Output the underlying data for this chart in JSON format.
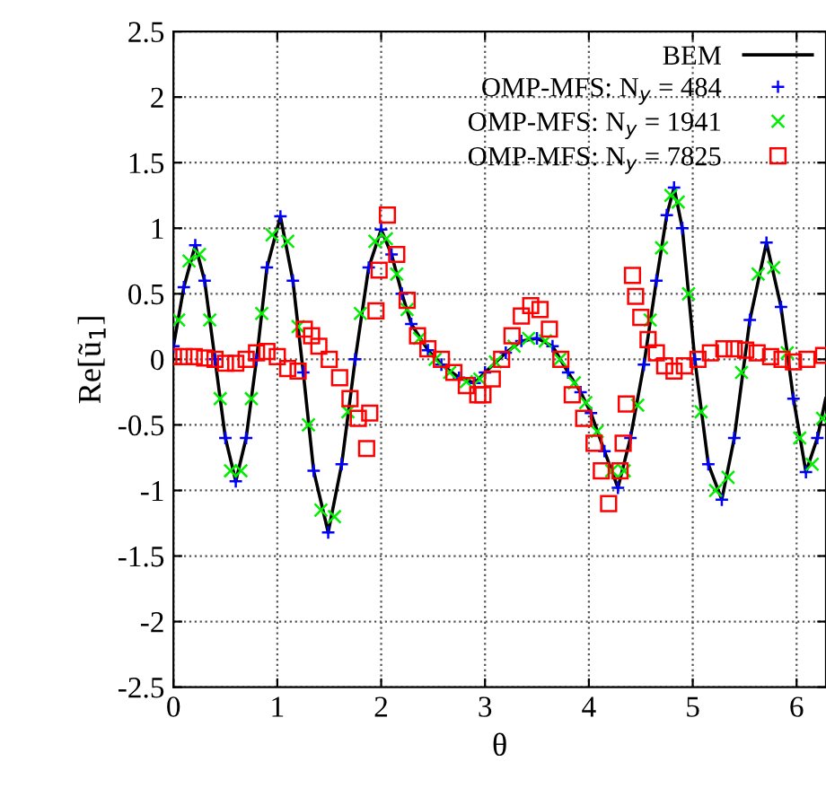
{
  "chart_data": {
    "type": "line",
    "xlabel": "θ",
    "ylabel": "Re[ũ$_{1}$]",
    "xlim": [
      0,
      6.2832
    ],
    "ylim": [
      -2.5,
      2.5
    ],
    "xticks": [
      0,
      1,
      2,
      3,
      4,
      5,
      6
    ],
    "yticks": [
      -2.5,
      -2,
      -1.5,
      -1,
      -0.5,
      0,
      0.5,
      1,
      1.5,
      2,
      2.5
    ],
    "grid": true,
    "legend": "top right",
    "series": [
      {
        "name": "BEM",
        "color": "#000000",
        "marker": "none",
        "line_style": "solid",
        "x": [
          0,
          0.1,
          0.21,
          0.3,
          0.4,
          0.5,
          0.6,
          0.7,
          0.8,
          0.9,
          1.03,
          1.15,
          1.25,
          1.35,
          1.49,
          1.62,
          1.75,
          1.88,
          2.0,
          2.1,
          2.2,
          2.29,
          2.45,
          2.58,
          2.75,
          2.9,
          3.0,
          3.2,
          3.35,
          3.5,
          3.65,
          3.8,
          3.92,
          4.02,
          4.15,
          4.28,
          4.4,
          4.53,
          4.65,
          4.75,
          4.82,
          4.9,
          5.02,
          5.15,
          5.28,
          5.4,
          5.55,
          5.71,
          5.85,
          5.97,
          6.09,
          6.2,
          6.28
        ],
        "values": [
          0.1,
          0.55,
          0.87,
          0.6,
          0.0,
          -0.6,
          -0.93,
          -0.6,
          0.0,
          0.7,
          1.09,
          0.6,
          -0.1,
          -0.85,
          -1.32,
          -0.8,
          0.0,
          0.7,
          0.99,
          0.8,
          0.5,
          0.27,
          0.07,
          -0.04,
          -0.14,
          -0.18,
          -0.1,
          0.05,
          0.14,
          0.16,
          0.1,
          -0.1,
          -0.25,
          -0.41,
          -0.7,
          -0.98,
          -0.6,
          -0.04,
          0.6,
          1.1,
          1.31,
          1.0,
          0.0,
          -0.8,
          -1.07,
          -0.6,
          0.3,
          0.89,
          0.4,
          -0.3,
          -0.86,
          -0.6,
          -0.3
        ]
      },
      {
        "name": "OMP-MFS: N$_{y}$ = 484",
        "type": "scatter",
        "color": "#0000ff",
        "marker": "plus",
        "x": [
          0,
          0.1,
          0.21,
          0.3,
          0.4,
          0.5,
          0.6,
          0.7,
          0.8,
          0.9,
          1.03,
          1.15,
          1.25,
          1.35,
          1.49,
          1.62,
          1.75,
          1.88,
          2.0,
          2.1,
          2.2,
          2.29,
          2.45,
          2.58,
          2.75,
          2.9,
          3.0,
          3.2,
          3.35,
          3.5,
          3.65,
          3.8,
          3.92,
          4.02,
          4.15,
          4.28,
          4.4,
          4.53,
          4.65,
          4.75,
          4.82,
          4.9,
          5.02,
          5.15,
          5.28,
          5.4,
          5.55,
          5.71,
          5.85,
          5.97,
          6.09,
          6.2
        ],
        "values": [
          0.1,
          0.55,
          0.87,
          0.6,
          0.0,
          -0.6,
          -0.93,
          -0.6,
          0.0,
          0.7,
          1.09,
          0.6,
          -0.1,
          -0.85,
          -1.32,
          -0.8,
          0.0,
          0.7,
          0.99,
          0.8,
          0.5,
          0.27,
          0.07,
          -0.04,
          -0.14,
          -0.18,
          -0.1,
          0.05,
          0.14,
          0.16,
          0.1,
          -0.1,
          -0.25,
          -0.41,
          -0.7,
          -0.98,
          -0.6,
          -0.04,
          0.6,
          1.1,
          1.31,
          1.0,
          0.0,
          -0.8,
          -1.07,
          -0.6,
          0.3,
          0.89,
          0.4,
          -0.3,
          -0.86,
          -0.6
        ]
      },
      {
        "name": "OMP-MFS: N$_{y}$ = 1941",
        "type": "scatter",
        "color": "#00ee00",
        "marker": "cross",
        "x": [
          0.05,
          0.15,
          0.25,
          0.35,
          0.45,
          0.55,
          0.65,
          0.75,
          0.85,
          0.95,
          1.1,
          1.2,
          1.3,
          1.42,
          1.55,
          1.68,
          1.8,
          1.94,
          2.05,
          2.15,
          2.25,
          2.37,
          2.52,
          2.66,
          2.82,
          2.95,
          3.1,
          3.28,
          3.42,
          3.58,
          3.72,
          3.86,
          3.97,
          4.08,
          4.22,
          4.34,
          4.47,
          4.59,
          4.7,
          4.79,
          4.86,
          4.96,
          5.08,
          5.22,
          5.34,
          5.47,
          5.63,
          5.78,
          5.91,
          6.03,
          6.15,
          6.25
        ],
        "values": [
          0.3,
          0.75,
          0.8,
          0.3,
          -0.3,
          -0.85,
          -0.85,
          -0.3,
          0.35,
          0.95,
          0.9,
          0.25,
          -0.5,
          -1.15,
          -1.2,
          -0.4,
          0.35,
          0.9,
          0.92,
          0.65,
          0.38,
          0.16,
          0.0,
          -0.1,
          -0.17,
          -0.15,
          -0.02,
          0.1,
          0.16,
          0.14,
          0.0,
          -0.18,
          -0.33,
          -0.55,
          -0.85,
          -0.85,
          -0.35,
          0.3,
          0.85,
          1.25,
          1.2,
          0.5,
          -0.4,
          -1.0,
          -0.9,
          -0.1,
          0.65,
          0.7,
          0.05,
          -0.6,
          -0.8,
          -0.45
        ]
      },
      {
        "name": "OMP-MFS: N$_{y}$ = 7825",
        "type": "scatter",
        "color": "#ff0000",
        "marker": "square",
        "x": [
          0,
          0.1,
          0.2,
          0.3,
          0.4,
          0.5,
          0.6,
          0.7,
          0.8,
          0.9,
          1.0,
          1.1,
          1.2,
          1.26,
          1.33,
          1.4,
          1.5,
          1.6,
          1.7,
          1.78,
          1.86,
          1.89,
          1.95,
          1.98,
          2.06,
          2.15,
          2.25,
          2.35,
          2.45,
          2.58,
          2.7,
          2.82,
          2.93,
          2.98,
          3.07,
          3.16,
          3.26,
          3.35,
          3.44,
          3.53,
          3.62,
          3.73,
          3.84,
          3.95,
          4.05,
          4.12,
          4.19,
          4.3,
          4.33,
          4.36,
          4.42,
          4.45,
          4.5,
          4.57,
          4.65,
          4.73,
          4.82,
          4.92,
          5.05,
          5.17,
          5.3,
          5.4,
          5.51,
          5.62,
          5.75,
          5.86,
          5.97,
          6.1,
          6.26
        ],
        "values": [
          0.02,
          0.02,
          0.02,
          0.01,
          0.0,
          -0.03,
          -0.03,
          0.0,
          0.05,
          0.06,
          0.02,
          -0.07,
          -0.09,
          0.23,
          0.18,
          0.1,
          0.0,
          -0.14,
          -0.3,
          -0.45,
          -0.68,
          -0.41,
          0.37,
          0.68,
          1.1,
          0.8,
          0.45,
          0.18,
          0.08,
          0.0,
          -0.1,
          -0.2,
          -0.27,
          -0.27,
          -0.15,
          0.0,
          0.18,
          0.33,
          0.41,
          0.38,
          0.23,
          0.0,
          -0.27,
          -0.45,
          -0.64,
          -0.85,
          -1.1,
          -0.85,
          -0.64,
          -0.34,
          0.64,
          0.48,
          0.32,
          0.15,
          0.05,
          -0.05,
          -0.09,
          -0.05,
          0.0,
          0.05,
          0.08,
          0.08,
          0.07,
          0.05,
          0.02,
          0.0,
          -0.02,
          0.0,
          0.03
        ]
      }
    ]
  }
}
